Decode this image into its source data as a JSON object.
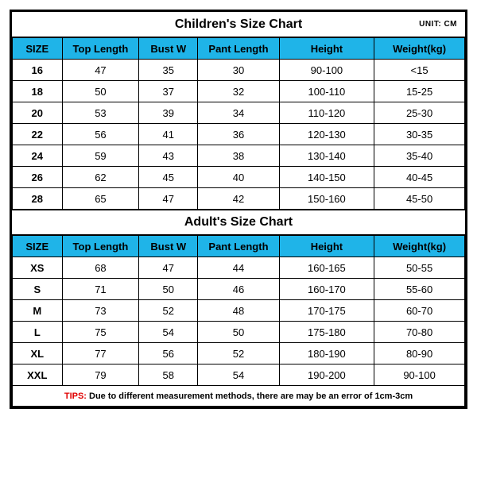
{
  "unit": "UNIT: CM",
  "children": {
    "title": "Children's Size Chart",
    "columns": [
      "SIZE",
      "Top Length",
      "Bust W",
      "Pant Length",
      "Height",
      "Weight(kg)"
    ],
    "rows": [
      [
        "16",
        "47",
        "35",
        "30",
        "90-100",
        "<15"
      ],
      [
        "18",
        "50",
        "37",
        "32",
        "100-110",
        "15-25"
      ],
      [
        "20",
        "53",
        "39",
        "34",
        "110-120",
        "25-30"
      ],
      [
        "22",
        "56",
        "41",
        "36",
        "120-130",
        "30-35"
      ],
      [
        "24",
        "59",
        "43",
        "38",
        "130-140",
        "35-40"
      ],
      [
        "26",
        "62",
        "45",
        "40",
        "140-150",
        "40-45"
      ],
      [
        "28",
        "65",
        "47",
        "42",
        "150-160",
        "45-50"
      ]
    ]
  },
  "adult": {
    "title": "Adult's Size Chart",
    "columns": [
      "SIZE",
      "Top Length",
      "Bust W",
      "Pant Length",
      "Height",
      "Weight(kg)"
    ],
    "rows": [
      [
        "XS",
        "68",
        "47",
        "44",
        "160-165",
        "50-55"
      ],
      [
        "S",
        "71",
        "50",
        "46",
        "160-170",
        "55-60"
      ],
      [
        "M",
        "73",
        "52",
        "48",
        "170-175",
        "60-70"
      ],
      [
        "L",
        "75",
        "54",
        "50",
        "175-180",
        "70-80"
      ],
      [
        "XL",
        "77",
        "56",
        "52",
        "180-190",
        "80-90"
      ],
      [
        "XXL",
        "79",
        "58",
        "54",
        "190-200",
        "90-100"
      ]
    ]
  },
  "tips": {
    "label": "TIPS: ",
    "body": "Due to different measurement methods, there are may be an error of 1cm-3cm"
  },
  "colors": {
    "header_bg": "#1fb4e8",
    "border": "#000000",
    "tips_label": "#e00000",
    "background": "#ffffff"
  }
}
